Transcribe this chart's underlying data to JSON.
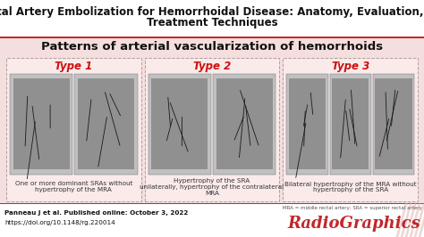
{
  "title_line1": "Rectal Artery Embolization for Hemorrhoidal Disease: Anatomy, Evaluation, and",
  "title_line2": "Treatment Techniques",
  "title_bg": "#ffffff",
  "title_color": "#111111",
  "title_fontsize": 8.5,
  "subtitle": "Patterns of arterial vascularization of hemorrhoids",
  "subtitle_fontsize": 9.5,
  "subtitle_color": "#111111",
  "panel_bg": "#f5dede",
  "outer_bg": "#ffffff",
  "red_line_color": "#c0282a",
  "type_colors": [
    "#cc1111",
    "#cc1111",
    "#cc1111"
  ],
  "type_labels": [
    "Type 1",
    "Type 2",
    "Type 3"
  ],
  "type_fontsize": 8.5,
  "desc1": "One or more dominant SRAs without\nhypertrophy of the MRA",
  "desc2": "Hypertrophy of the SRA\nunilaterally, hypertrophy of the contralateral\nMRA",
  "desc3": "Bilateral hypertrophy of the MRA without\nhypertrophy of the SRA",
  "desc_fontsize": 5.2,
  "footnote1": "MRA = middle rectal artery; SRA = superior rectal artery",
  "footnote1_fontsize": 4.0,
  "citation1": "Panneau J et al. Published online: October 3, 2022",
  "citation2": "https://doi.org/10.1148/rg.220014",
  "citation_fontsize": 5.2,
  "radiographics_text": "RadioGraphics",
  "radiographics_color": "#c0282a",
  "radiographics_fontsize": 13,
  "bottom_strip_color": "#ffffff",
  "image_color_light": "#c0c0c0",
  "image_color_dark": "#909090",
  "dashed_border_color": "#b0a0a0",
  "inner_panel_bg": "#faeaea",
  "sub_counts": [
    2,
    2,
    3
  ]
}
